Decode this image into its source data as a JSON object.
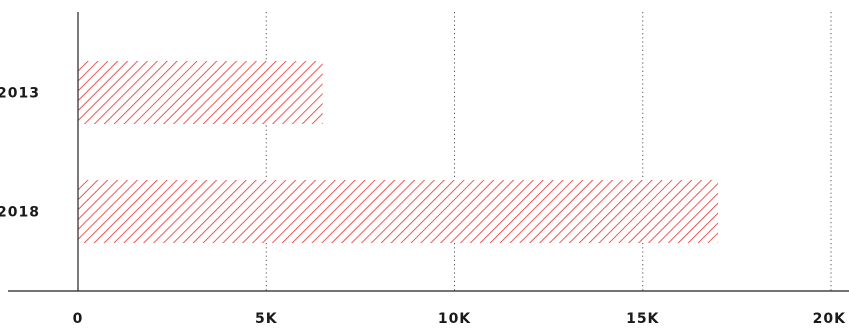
{
  "chart_data": {
    "type": "bar",
    "orientation": "horizontal",
    "categories": [
      "2013",
      "2018"
    ],
    "values": [
      6500,
      17000
    ],
    "xlim": [
      0,
      20000
    ],
    "xticks": [
      0,
      5000,
      10000,
      15000,
      20000
    ],
    "xtick_labels": [
      "0",
      "5K",
      "10K",
      "15K",
      "20K"
    ],
    "grid": "vertical dotted",
    "bar_style": "diagonal hatch",
    "colors": {
      "bar": "#e8302e",
      "axis": "#222222",
      "grid": "#555555"
    }
  }
}
